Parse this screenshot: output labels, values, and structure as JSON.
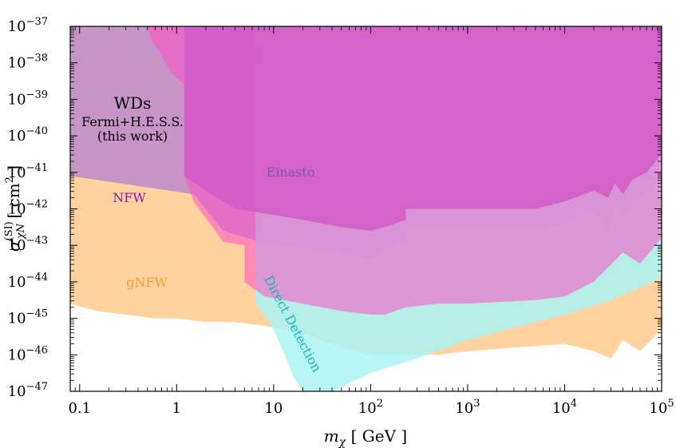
{
  "chart_data": {
    "type": "area",
    "x_scale": "log",
    "y_scale": "log",
    "xlim": [
      0.08,
      100000
    ],
    "ylim": [
      1e-47,
      1e-37
    ],
    "grid": false,
    "legend": "none",
    "xlabel": {
      "main": "m",
      "sub": "χ",
      "rest": " [ GeV ]"
    },
    "ylabel": {
      "main": "σ",
      "sup": "(SI)",
      "sub": "χN",
      "rest": " [ cm",
      "rest_sup": "2",
      "rest_end": " ]"
    },
    "x_ticks": [
      {
        "value": 0.1,
        "label": "0.1"
      },
      {
        "value": 1,
        "label": "1"
      },
      {
        "value": 10,
        "label": "10"
      },
      {
        "value": 100,
        "label": "10",
        "sup": "2"
      },
      {
        "value": 1000,
        "label": "10",
        "sup": "3"
      },
      {
        "value": 10000,
        "label": "10",
        "sup": "4"
      },
      {
        "value": 100000,
        "label": "10",
        "sup": "5"
      }
    ],
    "y_ticks": [
      {
        "value": -37,
        "label": "10",
        "sup": "−37"
      },
      {
        "value": -38,
        "label": "10",
        "sup": "−38"
      },
      {
        "value": -39,
        "label": "10",
        "sup": "−39"
      },
      {
        "value": -40,
        "label": "10",
        "sup": "−40"
      },
      {
        "value": -41,
        "label": "10",
        "sup": "−41"
      },
      {
        "value": -42,
        "label": "10",
        "sup": "−42"
      },
      {
        "value": -43,
        "label": "10",
        "sup": "−43"
      },
      {
        "value": -44,
        "label": "10",
        "sup": "−44"
      },
      {
        "value": -45,
        "label": "10",
        "sup": "−45"
      },
      {
        "value": -46,
        "label": "10",
        "sup": "−46"
      },
      {
        "value": -47,
        "label": "10",
        "sup": "−47"
      }
    ],
    "series": [
      {
        "name": "Einasto",
        "color": "#9b6ec9",
        "boundary_log10_sigma": [
          [
            1.2,
            -37
          ],
          [
            1.2,
            -41.1
          ],
          [
            2,
            -41.5
          ],
          [
            4,
            -42.0
          ],
          [
            7,
            -42.1
          ],
          [
            20,
            -42.3
          ],
          [
            50,
            -42.5
          ],
          [
            100,
            -42.6
          ],
          [
            140,
            -42.5
          ],
          [
            230,
            -42.3
          ],
          [
            230,
            -42.0
          ],
          [
            1000,
            -42.0
          ],
          [
            5000,
            -42.0
          ],
          [
            10000,
            -41.8
          ],
          [
            20000,
            -41.5
          ],
          [
            28000,
            -41.7
          ],
          [
            33000,
            -41.3
          ],
          [
            40000,
            -41.6
          ],
          [
            50000,
            -41.2
          ],
          [
            70000,
            -41.0
          ],
          [
            100000,
            -40.5
          ],
          [
            100000,
            -37
          ]
        ]
      },
      {
        "name": "NFW",
        "color": "#a874d8",
        "boundary_log10_sigma": [
          [
            0.08,
            -41.1
          ],
          [
            1.5,
            -41.6
          ],
          [
            3,
            -42.6
          ],
          [
            7,
            -42.9
          ],
          [
            20,
            -43.1
          ],
          [
            50,
            -43.2
          ],
          [
            100,
            -43.4
          ],
          [
            140,
            -43.1
          ],
          [
            230,
            -42.9
          ],
          [
            230,
            -42.6
          ],
          [
            1000,
            -42.6
          ],
          [
            5000,
            -42.6
          ],
          [
            10000,
            -42.4
          ],
          [
            20000,
            -42.0
          ],
          [
            28000,
            -42.6
          ],
          [
            33000,
            -41.9
          ],
          [
            40000,
            -42.3
          ],
          [
            50000,
            -41.8
          ],
          [
            70000,
            -41.6
          ],
          [
            100000,
            -41.2
          ]
        ]
      },
      {
        "name": "gNFW",
        "color": "#ffb461",
        "boundary_log10_sigma": [
          [
            0.08,
            -44.6
          ],
          [
            0.15,
            -44.8
          ],
          [
            0.3,
            -44.9
          ],
          [
            0.6,
            -45.0
          ],
          [
            1,
            -45.0
          ],
          [
            2,
            -45.1
          ],
          [
            4,
            -45.1
          ],
          [
            8,
            -45.2
          ],
          [
            20,
            -45.4
          ],
          [
            50,
            -45.8
          ],
          [
            100,
            -46.0
          ],
          [
            140,
            -46.0
          ],
          [
            230,
            -46.0
          ],
          [
            500,
            -46.0
          ],
          [
            1000,
            -45.9
          ],
          [
            3000,
            -45.8
          ],
          [
            10000,
            -45.7
          ],
          [
            20000,
            -45.9
          ],
          [
            30000,
            -46.1
          ],
          [
            40000,
            -45.6
          ],
          [
            60000,
            -45.9
          ],
          [
            100000,
            -45.3
          ]
        ]
      },
      {
        "name": "Direct Detection",
        "color": "#aaf4f2",
        "boundary_log10_sigma": [
          [
            6.5,
            -44.6
          ],
          [
            8,
            -44.9
          ],
          [
            10,
            -45.3
          ],
          [
            13,
            -46.0
          ],
          [
            16,
            -46.6
          ],
          [
            20,
            -47
          ],
          [
            40,
            -47
          ],
          [
            100,
            -46.5
          ],
          [
            300,
            -46.1
          ],
          [
            1000,
            -45.6
          ],
          [
            5000,
            -45.1
          ],
          [
            10000,
            -44.9
          ],
          [
            30000,
            -44.5
          ],
          [
            100000,
            -43.9
          ]
        ]
      },
      {
        "name": "WDs Fermi+H.E.S.S. (this work)",
        "color": "#ff4fc6",
        "boundary_log10_sigma": [
          [
            0.08,
            -37
          ],
          [
            0.5,
            -37
          ],
          [
            0.55,
            -37.4
          ],
          [
            0.7,
            -37.8
          ],
          [
            0.9,
            -38.3
          ],
          [
            1.2,
            -38.6
          ],
          [
            1.2,
            -41.1
          ],
          [
            1.5,
            -41.8
          ],
          [
            2.5,
            -42.6
          ],
          [
            3,
            -42.9
          ],
          [
            5,
            -43.0
          ],
          [
            5,
            -44.0
          ],
          [
            8,
            -44.4
          ],
          [
            20,
            -44.6
          ],
          [
            50,
            -44.8
          ],
          [
            100,
            -44.9
          ],
          [
            140,
            -44.9
          ],
          [
            230,
            -44.7
          ],
          [
            500,
            -44.6
          ],
          [
            1000,
            -44.6
          ],
          [
            5000,
            -44.5
          ],
          [
            10000,
            -44.4
          ],
          [
            20000,
            -44.0
          ],
          [
            40000,
            -43.2
          ],
          [
            60000,
            -43.5
          ],
          [
            100000,
            -42.8
          ]
        ]
      }
    ],
    "annotations": [
      {
        "lines": [
          "WDs",
          "Fermi+H.E.S.S.",
          "(this work)"
        ],
        "color": "#000000"
      },
      {
        "text": "Einasto",
        "color": "#7d55aa"
      },
      {
        "text": "NFW",
        "color": "#8b1aa8"
      },
      {
        "text": "gNFW",
        "color": "#f0a030"
      },
      {
        "text": "Direct Detection",
        "color": "#17b3bf",
        "rotation_deg": 62
      }
    ]
  }
}
